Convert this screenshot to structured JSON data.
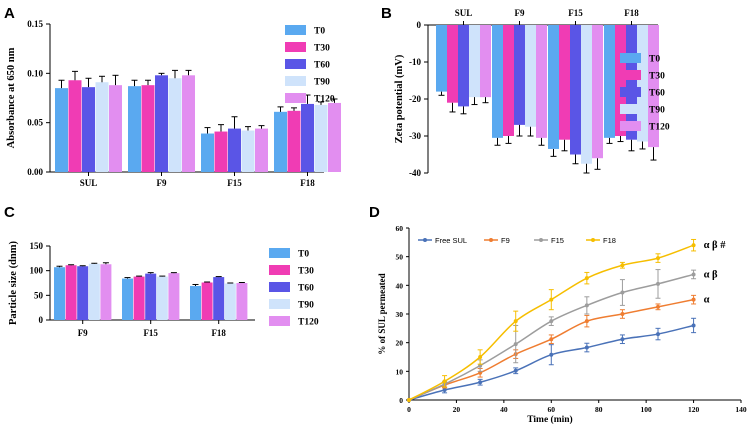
{
  "chart_data": [
    {
      "panel": "A",
      "type": "bar",
      "title": "",
      "xlabel": "",
      "ylabel": "Absorbance at 650 nm",
      "categories": [
        "SUL",
        "F9",
        "F15",
        "F18"
      ],
      "ylim": [
        0,
        0.15
      ],
      "yticks": [
        0.0,
        0.05,
        0.1,
        0.15
      ],
      "ytick_labels": [
        "0.00",
        "0.05",
        "0.10",
        "0.15"
      ],
      "legend_position": "right",
      "series": [
        {
          "name": "T0",
          "color": "#5aa9f0",
          "values": [
            0.085,
            0.087,
            0.039,
            0.061
          ],
          "errors": [
            0.008,
            0.006,
            0.006,
            0.005
          ]
        },
        {
          "name": "T30",
          "color": "#f03cb4",
          "values": [
            0.093,
            0.088,
            0.041,
            0.062
          ],
          "errors": [
            0.009,
            0.005,
            0.007,
            0.003
          ]
        },
        {
          "name": "T60",
          "color": "#5a55e6",
          "values": [
            0.086,
            0.098,
            0.044,
            0.069
          ],
          "errors": [
            0.009,
            0.002,
            0.012,
            0.009
          ]
        },
        {
          "name": "T90",
          "color": "#cfe3fb",
          "values": [
            0.091,
            0.095,
            0.042,
            0.068
          ],
          "errors": [
            0.006,
            0.008,
            0.004,
            0.003
          ]
        },
        {
          "name": "T120",
          "color": "#e28ef0",
          "values": [
            0.088,
            0.098,
            0.044,
            0.07
          ],
          "errors": [
            0.01,
            0.005,
            0.003,
            0.004
          ]
        }
      ]
    },
    {
      "panel": "B",
      "type": "bar",
      "title": "",
      "xlabel": "",
      "ylabel": "Zeta potential (mV)",
      "categories": [
        "SUL",
        "F9",
        "F15",
        "F18"
      ],
      "ylim": [
        -40,
        0
      ],
      "yticks": [
        0,
        -10,
        -20,
        -30,
        -40
      ],
      "ytick_labels": [
        "0",
        "-10",
        "-20",
        "-30",
        "-40"
      ],
      "legend_position": "right",
      "series": [
        {
          "name": "T0",
          "color": "#5aa9f0",
          "values": [
            -18,
            -30.5,
            -33.5,
            -30.5
          ],
          "errors": [
            1.0,
            2.0,
            2.0,
            1.5
          ]
        },
        {
          "name": "T30",
          "color": "#f03cb4",
          "values": [
            -21,
            -30.0,
            -31.0,
            -30.0
          ],
          "errors": [
            2.5,
            2.0,
            3.0,
            1.5
          ]
        },
        {
          "name": "T60",
          "color": "#5a55e6",
          "values": [
            -22,
            -27.0,
            -35.0,
            -31.0
          ],
          "errors": [
            2.0,
            3.0,
            2.5,
            3.0
          ]
        },
        {
          "name": "T90",
          "color": "#cfe3fb",
          "values": [
            -19.5,
            -27.5,
            -37.5,
            -31.5
          ],
          "errors": [
            2.0,
            2.5,
            2.5,
            2.0
          ]
        },
        {
          "name": "T120",
          "color": "#e28ef0",
          "values": [
            -19.5,
            -30.5,
            -36.0,
            -33.0
          ],
          "errors": [
            1.5,
            2.0,
            3.0,
            3.5
          ]
        }
      ]
    },
    {
      "panel": "C",
      "type": "bar",
      "title": "",
      "xlabel": "",
      "ylabel": "Particle size (dnm)",
      "categories": [
        "F9",
        "F15",
        "F18"
      ],
      "ylim": [
        0,
        150
      ],
      "yticks": [
        0,
        50,
        100,
        150
      ],
      "ytick_labels": [
        "0",
        "50",
        "100",
        "150"
      ],
      "legend_position": "right",
      "series": [
        {
          "name": "T0",
          "color": "#5aa9f0",
          "values": [
            107,
            84,
            69
          ],
          "errors": [
            2,
            2,
            3
          ]
        },
        {
          "name": "T30",
          "color": "#f03cb4",
          "values": [
            111,
            88,
            76
          ],
          "errors": [
            1,
            1,
            1
          ]
        },
        {
          "name": "T60",
          "color": "#5a55e6",
          "values": [
            109,
            94,
            87
          ],
          "errors": [
            1,
            2,
            1
          ]
        },
        {
          "name": "T90",
          "color": "#cfe3fb",
          "values": [
            114,
            88,
            74
          ],
          "errors": [
            1,
            1,
            1
          ]
        },
        {
          "name": "T120",
          "color": "#e28ef0",
          "values": [
            113,
            95,
            75
          ],
          "errors": [
            3,
            1,
            1
          ]
        }
      ]
    },
    {
      "panel": "D",
      "type": "line",
      "title": "",
      "xlabel": "Time (min)",
      "ylabel": "% of SUL permeated",
      "x": [
        0,
        15,
        30,
        45,
        60,
        75,
        90,
        105,
        120
      ],
      "xlim": [
        0,
        140
      ],
      "ylim": [
        0,
        60
      ],
      "xticks": [
        0,
        20,
        40,
        60,
        80,
        100,
        120,
        140
      ],
      "yticks": [
        0,
        10,
        20,
        30,
        40,
        50,
        60
      ],
      "legend_position": "top",
      "series": [
        {
          "name": "Free SUL",
          "color": "#4a72b8",
          "values": [
            0,
            3.5,
            6.2,
            10.2,
            15.8,
            18.3,
            21.2,
            23.0,
            26.0
          ],
          "errors": [
            0,
            1.0,
            1.0,
            1.0,
            3.5,
            1.5,
            1.5,
            2.0,
            2.5
          ],
          "label": ""
        },
        {
          "name": "F9",
          "color": "#ef7d31",
          "values": [
            0,
            5.2,
            9.5,
            16.0,
            21.2,
            27.5,
            30.0,
            32.5,
            35.0
          ],
          "errors": [
            0,
            1.0,
            1.5,
            1.5,
            1.5,
            2.0,
            1.5,
            1.0,
            1.5
          ],
          "label": "α"
        },
        {
          "name": "F15",
          "color": "#9d9d9d",
          "values": [
            0,
            5.5,
            12.0,
            19.5,
            27.5,
            33.0,
            37.5,
            40.5,
            43.8
          ],
          "errors": [
            0,
            1.0,
            2.0,
            6.5,
            1.5,
            3.0,
            4.5,
            5.0,
            1.5
          ],
          "label": "α β"
        },
        {
          "name": "F18",
          "color": "#f6be00",
          "values": [
            0,
            6.5,
            15.0,
            27.5,
            35.0,
            42.5,
            47.0,
            49.5,
            54.0
          ],
          "errors": [
            0,
            2.0,
            2.5,
            3.5,
            3.5,
            2.0,
            1.0,
            1.5,
            2.0
          ],
          "label": "α β #"
        }
      ]
    }
  ]
}
